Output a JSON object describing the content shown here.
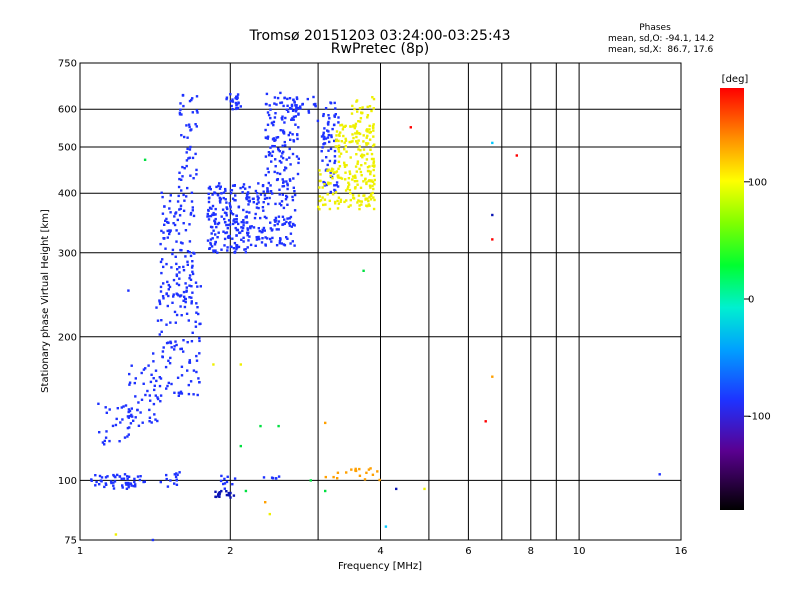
{
  "chart_data": {
    "type": "scatter",
    "title": "Tromsø 20151203 03:24:00-03:25:43",
    "subtitle": "RwPretec (8p)",
    "xlabel": "Frequency [MHz]",
    "ylabel": "Stationary phase Virtual Height [km]",
    "x_scale": "log",
    "y_scale": "log",
    "xlim": [
      1,
      16
    ],
    "ylim": [
      75,
      750
    ],
    "x_ticks": [
      1,
      2,
      4,
      6,
      8,
      10,
      16
    ],
    "x_grid": [
      2,
      3,
      4,
      5,
      6,
      7,
      8,
      9,
      10
    ],
    "y_ticks": [
      75,
      100,
      200,
      300,
      400,
      500,
      600,
      750
    ],
    "grid": true,
    "phase_stats": {
      "heading": "Phases",
      "line1": "mean, sd,O: -94.1, 14.2",
      "line2": "mean, sd,X:  86.7, 17.6"
    },
    "colorbar": {
      "label": "[deg]",
      "range": [
        -180,
        180
      ],
      "ticks": [
        100,
        0,
        -100
      ]
    },
    "colors": {
      "blue": "#1e32ff",
      "dark_blue": "#0a14b4",
      "yellow": "#eef000",
      "orange": "#ffa000",
      "red": "#ff0000",
      "green": "#00e040",
      "cyan": "#00c8ff"
    },
    "clusters": [
      {
        "fmin": 1.05,
        "fmax": 1.35,
        "hmin": 96,
        "hmax": 103,
        "n": 55,
        "color": "blue"
      },
      {
        "fmin": 1.45,
        "fmax": 1.62,
        "hmin": 97,
        "hmax": 104,
        "n": 14,
        "color": "blue"
      },
      {
        "fmin": 1.9,
        "fmax": 2.05,
        "hmin": 96,
        "hmax": 103,
        "n": 10,
        "color": "blue"
      },
      {
        "fmin": 1.85,
        "fmax": 2.05,
        "hmin": 92,
        "hmax": 95,
        "n": 18,
        "color": "dark_blue"
      },
      {
        "fmin": 2.3,
        "fmax": 2.6,
        "hmin": 100,
        "hmax": 103,
        "n": 6,
        "color": "blue"
      },
      {
        "fmin": 3.1,
        "fmax": 3.3,
        "hmin": 100,
        "hmax": 104,
        "n": 4,
        "color": "orange"
      },
      {
        "fmin": 3.4,
        "fmax": 4.0,
        "hmin": 100,
        "hmax": 106,
        "n": 14,
        "color": "orange"
      },
      {
        "fmin": 1.08,
        "fmax": 1.3,
        "hmin": 118,
        "hmax": 145,
        "n": 30,
        "color": "blue"
      },
      {
        "fmin": 1.25,
        "fmax": 1.45,
        "hmin": 130,
        "hmax": 175,
        "n": 50,
        "color": "blue"
      },
      {
        "fmin": 1.4,
        "fmax": 1.75,
        "hmin": 150,
        "hmax": 260,
        "n": 110,
        "color": "blue"
      },
      {
        "fmin": 1.45,
        "fmax": 1.7,
        "hmin": 240,
        "hmax": 420,
        "n": 120,
        "color": "blue"
      },
      {
        "fmin": 1.58,
        "fmax": 1.72,
        "hmin": 420,
        "hmax": 650,
        "n": 45,
        "color": "blue"
      },
      {
        "fmin": 1.8,
        "fmax": 2.2,
        "hmin": 300,
        "hmax": 420,
        "n": 200,
        "color": "blue"
      },
      {
        "fmin": 1.95,
        "fmax": 2.1,
        "hmin": 600,
        "hmax": 650,
        "n": 25,
        "color": "blue"
      },
      {
        "fmin": 2.2,
        "fmax": 2.7,
        "hmin": 310,
        "hmax": 420,
        "n": 130,
        "color": "blue"
      },
      {
        "fmin": 2.35,
        "fmax": 2.75,
        "hmin": 420,
        "hmax": 650,
        "n": 130,
        "color": "blue"
      },
      {
        "fmin": 2.65,
        "fmax": 3.0,
        "hmin": 560,
        "hmax": 640,
        "n": 25,
        "color": "blue"
      },
      {
        "fmin": 3.05,
        "fmax": 3.3,
        "hmin": 400,
        "hmax": 620,
        "n": 70,
        "color": "blue"
      },
      {
        "fmin": 3.0,
        "fmax": 3.3,
        "hmin": 370,
        "hmax": 450,
        "n": 40,
        "color": "yellow"
      },
      {
        "fmin": 3.25,
        "fmax": 3.9,
        "hmin": 370,
        "hmax": 560,
        "n": 200,
        "color": "yellow"
      },
      {
        "fmin": 3.5,
        "fmax": 3.9,
        "hmin": 540,
        "hmax": 640,
        "n": 25,
        "color": "yellow"
      }
    ],
    "outliers": [
      {
        "f": 4.6,
        "h": 550,
        "color": "red"
      },
      {
        "f": 6.7,
        "h": 510,
        "color": "cyan"
      },
      {
        "f": 7.5,
        "h": 480,
        "color": "red"
      },
      {
        "f": 6.7,
        "h": 360,
        "color": "dark_blue"
      },
      {
        "f": 6.7,
        "h": 320,
        "color": "red"
      },
      {
        "f": 6.7,
        "h": 165,
        "color": "orange"
      },
      {
        "f": 6.5,
        "h": 133,
        "color": "red"
      },
      {
        "f": 14.5,
        "h": 103,
        "color": "blue"
      },
      {
        "f": 3.7,
        "h": 275,
        "color": "green"
      },
      {
        "f": 1.35,
        "h": 470,
        "color": "green"
      },
      {
        "f": 1.25,
        "h": 250,
        "color": "blue"
      },
      {
        "f": 2.5,
        "h": 130,
        "color": "green"
      },
      {
        "f": 2.3,
        "h": 130,
        "color": "green"
      },
      {
        "f": 2.1,
        "h": 118,
        "color": "green"
      },
      {
        "f": 3.1,
        "h": 132,
        "color": "orange"
      },
      {
        "f": 2.15,
        "h": 95,
        "color": "green"
      },
      {
        "f": 2.1,
        "h": 175,
        "color": "yellow"
      },
      {
        "f": 1.85,
        "h": 175,
        "color": "yellow"
      },
      {
        "f": 2.4,
        "h": 85,
        "color": "yellow"
      },
      {
        "f": 2.35,
        "h": 90,
        "color": "orange"
      },
      {
        "f": 1.4,
        "h": 75,
        "color": "blue"
      },
      {
        "f": 1.18,
        "h": 77,
        "color": "yellow"
      },
      {
        "f": 4.3,
        "h": 96,
        "color": "dark_blue"
      },
      {
        "f": 4.9,
        "h": 96,
        "color": "yellow"
      },
      {
        "f": 4.1,
        "h": 80,
        "color": "cyan"
      },
      {
        "f": 3.1,
        "h": 95,
        "color": "green"
      },
      {
        "f": 2.9,
        "h": 100,
        "color": "green"
      }
    ]
  }
}
